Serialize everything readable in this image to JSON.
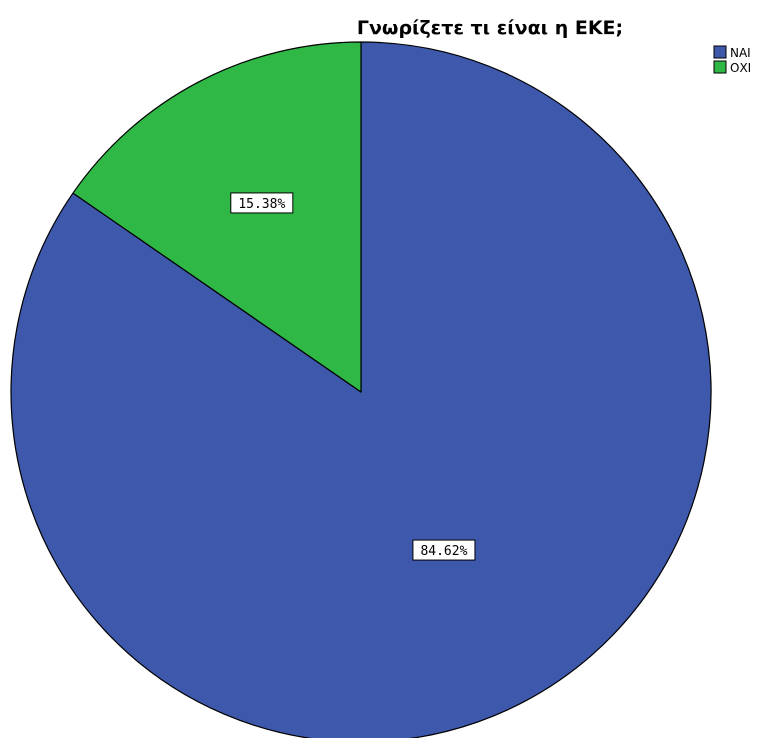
{
  "chart_data": {
    "type": "pie",
    "title": "Γνωρίζετε τι είναι η ΕΚΕ;",
    "categories": [
      "ΝΑΙ",
      "ΟΧΙ"
    ],
    "values": [
      84.62,
      15.38
    ],
    "data_labels": [
      "84.62%",
      "15.38%"
    ],
    "colors": [
      "#3e58ac",
      "#2fb846"
    ],
    "legend_position": "top-right",
    "start_angle_deg": 0,
    "direction": "clockwise"
  }
}
